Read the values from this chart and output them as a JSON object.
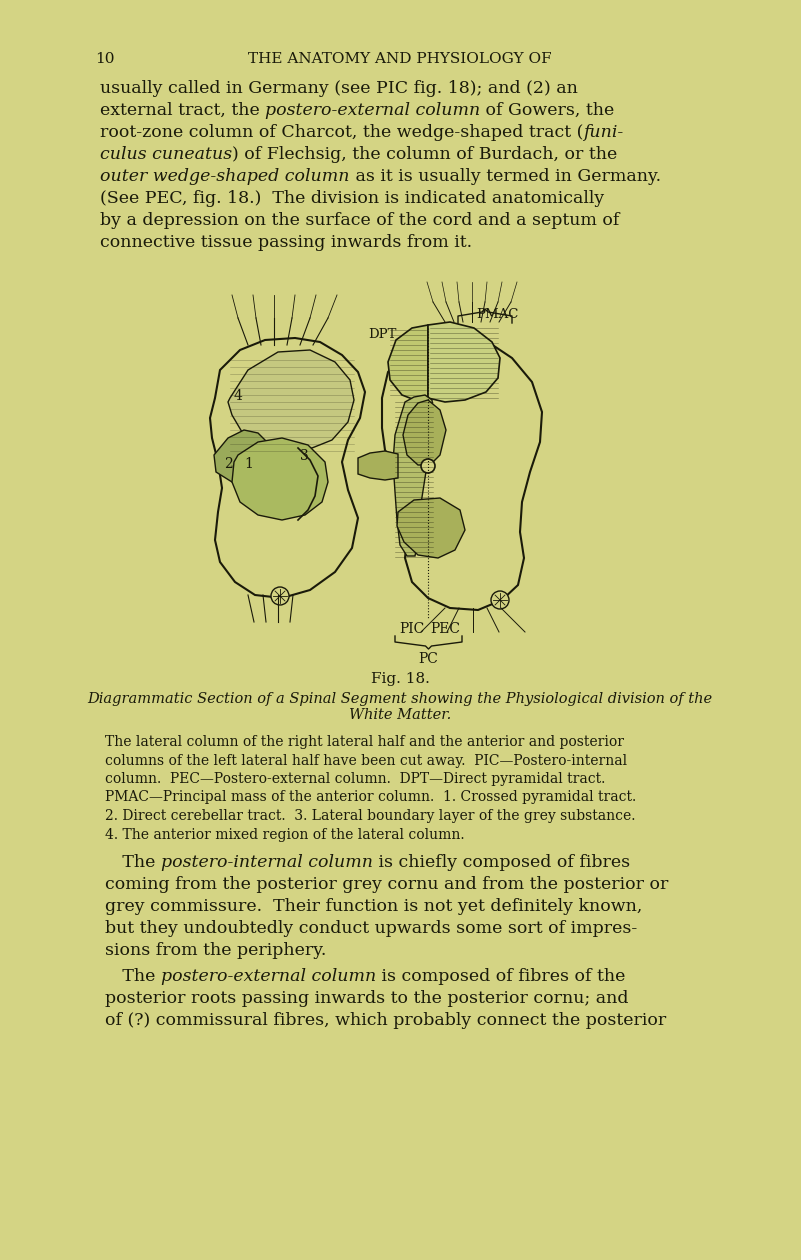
{
  "bg_color": "#d4d484",
  "text_color": "#1a1a0a",
  "page_number": "10",
  "header": "THE ANATOMY AND PHYSIOLOGY OF",
  "fig_title": "Fig. 18.",
  "fig_caption_italic": "Diagrammatic Section of a Spinal Segment showing the Physiological division of the\nWhite Matter.",
  "caption_lines": [
    "The lateral column of the right lateral half and the anterior and posterior",
    "columns of the left lateral half have been cut away.  PIC—Postero-internal",
    "column.  PEC—Postero-external column.  DPT—Direct pyramidal tract.",
    "PMAC—Principal mass of the anterior column.  1. Crossed pyramidal tract.",
    "2. Direct cerebellar tract.  3. Lateral boundary layer of the grey substance.",
    "4. The anterior mixed region of the lateral column."
  ],
  "p1_lines": [
    [
      [
        "usually called in Germany (see PIC fig. 18); and (2) an",
        false
      ]
    ],
    [
      [
        "external tract, the ",
        false
      ],
      [
        "postero-external column",
        true
      ],
      [
        " of Gowers, the",
        false
      ]
    ],
    [
      [
        "root-zone column of Charcot, the wedge-shaped tract (",
        false
      ],
      [
        "funi-",
        true
      ]
    ],
    [
      [
        "culus cuneatus",
        true
      ],
      [
        ") of Flechsig, the column of Burdach, or the",
        false
      ]
    ],
    [
      [
        "outer wedge-shaped column",
        true
      ],
      [
        " as it is usually termed in Germany.",
        false
      ]
    ],
    [
      [
        "(See PEC, fig. 18.)  The division is indicated anatomically",
        false
      ]
    ],
    [
      [
        "by a depression on the surface of the cord and a septum of",
        false
      ]
    ],
    [
      [
        "connective tissue passing inwards from it.",
        false
      ]
    ]
  ],
  "p2_lines": [
    [
      [
        " The ",
        false
      ],
      [
        "postero-internal column",
        true
      ],
      [
        " is chiefly composed of fibres",
        false
      ]
    ],
    [
      [
        "coming from the posterior grey cornu and from the posterior or",
        false
      ]
    ],
    [
      [
        "grey commissure.  Their function is not yet definitely known,",
        false
      ]
    ],
    [
      [
        "but they undoubtedly conduct upwards some sort of impres-",
        false
      ]
    ],
    [
      [
        "sions from the periphery.",
        false
      ]
    ]
  ],
  "p3_lines": [
    [
      [
        " The ",
        false
      ],
      [
        "postero-external column",
        true
      ],
      [
        " is composed of fibres of the",
        false
      ]
    ],
    [
      [
        "posterior roots passing inwards to the posterior cornu; and",
        false
      ]
    ],
    [
      [
        "of (?) commissural fibres, which probably connect the posterior",
        false
      ]
    ]
  ]
}
